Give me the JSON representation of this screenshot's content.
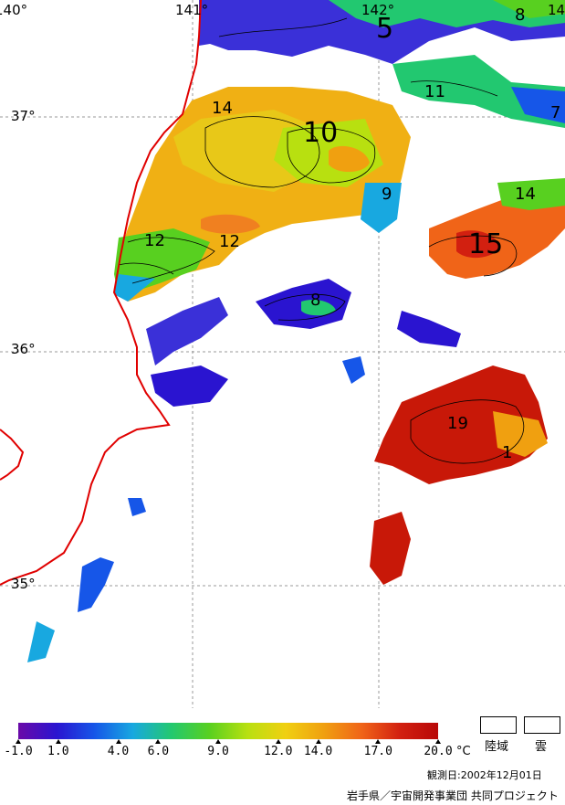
{
  "map": {
    "lon_labels": [
      "140°",
      "141°",
      "142°",
      "14"
    ],
    "lat_labels": [
      "37°",
      "36°",
      "35°"
    ],
    "isotherm_labels": [
      "5",
      "8",
      "11",
      "7",
      "14",
      "10",
      "9",
      "14",
      "12",
      "12",
      "15",
      "8",
      "19",
      "1"
    ]
  },
  "legend": {
    "colors": [
      "#6a0aa8",
      "#2a14d0",
      "#1656e8",
      "#18a8e0",
      "#22c870",
      "#58d020",
      "#b8e010",
      "#f0d010",
      "#f0a010",
      "#f06418",
      "#d22010",
      "#b80808"
    ],
    "ticks": [
      "-1.0",
      "1.0",
      "4.0",
      "6.0",
      "9.0",
      "12.0",
      "14.0",
      "17.0",
      "20.0"
    ],
    "unit": "°C",
    "land_label": "陸域",
    "cloud_label": "雲"
  },
  "observation_date": "観測日:2002年12月01日",
  "credit": "岩手県／宇宙開発事業団 共同プロジェクト",
  "colors": {
    "coastline": "#e00000",
    "grid": "#9a9a9a"
  }
}
